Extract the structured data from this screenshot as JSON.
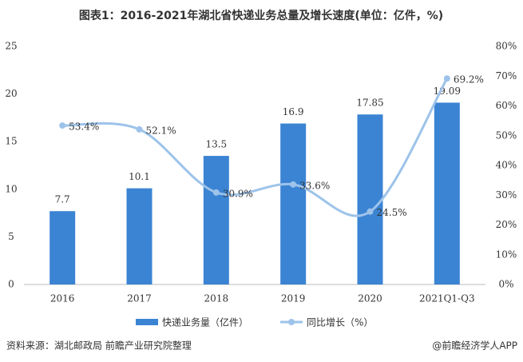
{
  "chart_data": {
    "type": "bar_line",
    "title": "图表1：2016-2021年湖北省快递业务总量及增长速度(单位：亿件，%)",
    "categories": [
      "2016",
      "2017",
      "2018",
      "2019",
      "2020",
      "2021Q1-Q3"
    ],
    "series": [
      {
        "name": "快递业务量（亿件）",
        "color": "#3b84d3",
        "type": "bar",
        "axis": "y",
        "values": [
          7.7,
          10.1,
          13.5,
          16.9,
          17.85,
          19.09
        ]
      },
      {
        "name": "同比增长（%）",
        "color": "#9dc3ea",
        "type": "line",
        "axis": "y2",
        "values": [
          53.4,
          52.1,
          30.9,
          33.6,
          24.5,
          69.2
        ],
        "value_labels": [
          "53.4%",
          "52.1%",
          "30.9%",
          "33.6%",
          "24.5%",
          "69.2%"
        ]
      }
    ],
    "ylim": [
      0,
      25
    ],
    "yticks": [
      0,
      5,
      10,
      15,
      20,
      25
    ],
    "y2lim": [
      0,
      80
    ],
    "y2ticks": [
      {
        "value": 0,
        "label": "0%"
      },
      {
        "value": 10,
        "label": "10%"
      },
      {
        "value": 20,
        "label": "20%"
      },
      {
        "value": 30,
        "label": "30%"
      },
      {
        "value": 40,
        "label": "40%"
      },
      {
        "value": 50,
        "label": "50%"
      },
      {
        "value": 60,
        "label": "60%"
      },
      {
        "value": 70,
        "label": "70%"
      },
      {
        "value": 80,
        "label": "80%"
      }
    ],
    "source": "资料来源：湖北邮政局 前瞻产业研究院整理",
    "credit": "@前瞻经济学人APP"
  }
}
